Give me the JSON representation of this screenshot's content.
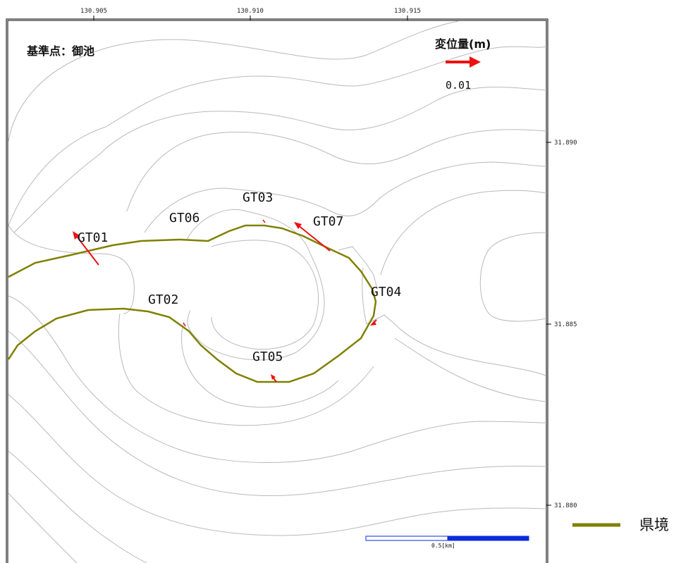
{
  "map": {
    "reference_point_label": "基準点：御池",
    "displacement_legend": {
      "title": "変位量(m)",
      "value": "0.01",
      "arrow_color": "#ee1111"
    },
    "lon_ticks": [
      "130.905",
      "130.910",
      "130.915"
    ],
    "lat_ticks": [
      "31.890",
      "31.885",
      "31.880"
    ],
    "scale_bar": {
      "label": "0.5[km]",
      "color": "#0a2bdb"
    },
    "boundary_color": "#808000",
    "contour_color": "#b9b9b9",
    "stations": [
      {
        "id": "GT01",
        "label": "GT01"
      },
      {
        "id": "GT02",
        "label": "GT02"
      },
      {
        "id": "GT03",
        "label": "GT03"
      },
      {
        "id": "GT04",
        "label": "GT04"
      },
      {
        "id": "GT05",
        "label": "GT05"
      },
      {
        "id": "GT06",
        "label": "GT06"
      },
      {
        "id": "GT07",
        "label": "GT07"
      }
    ]
  },
  "legend": {
    "prefecture_boundary_label": "県境"
  }
}
